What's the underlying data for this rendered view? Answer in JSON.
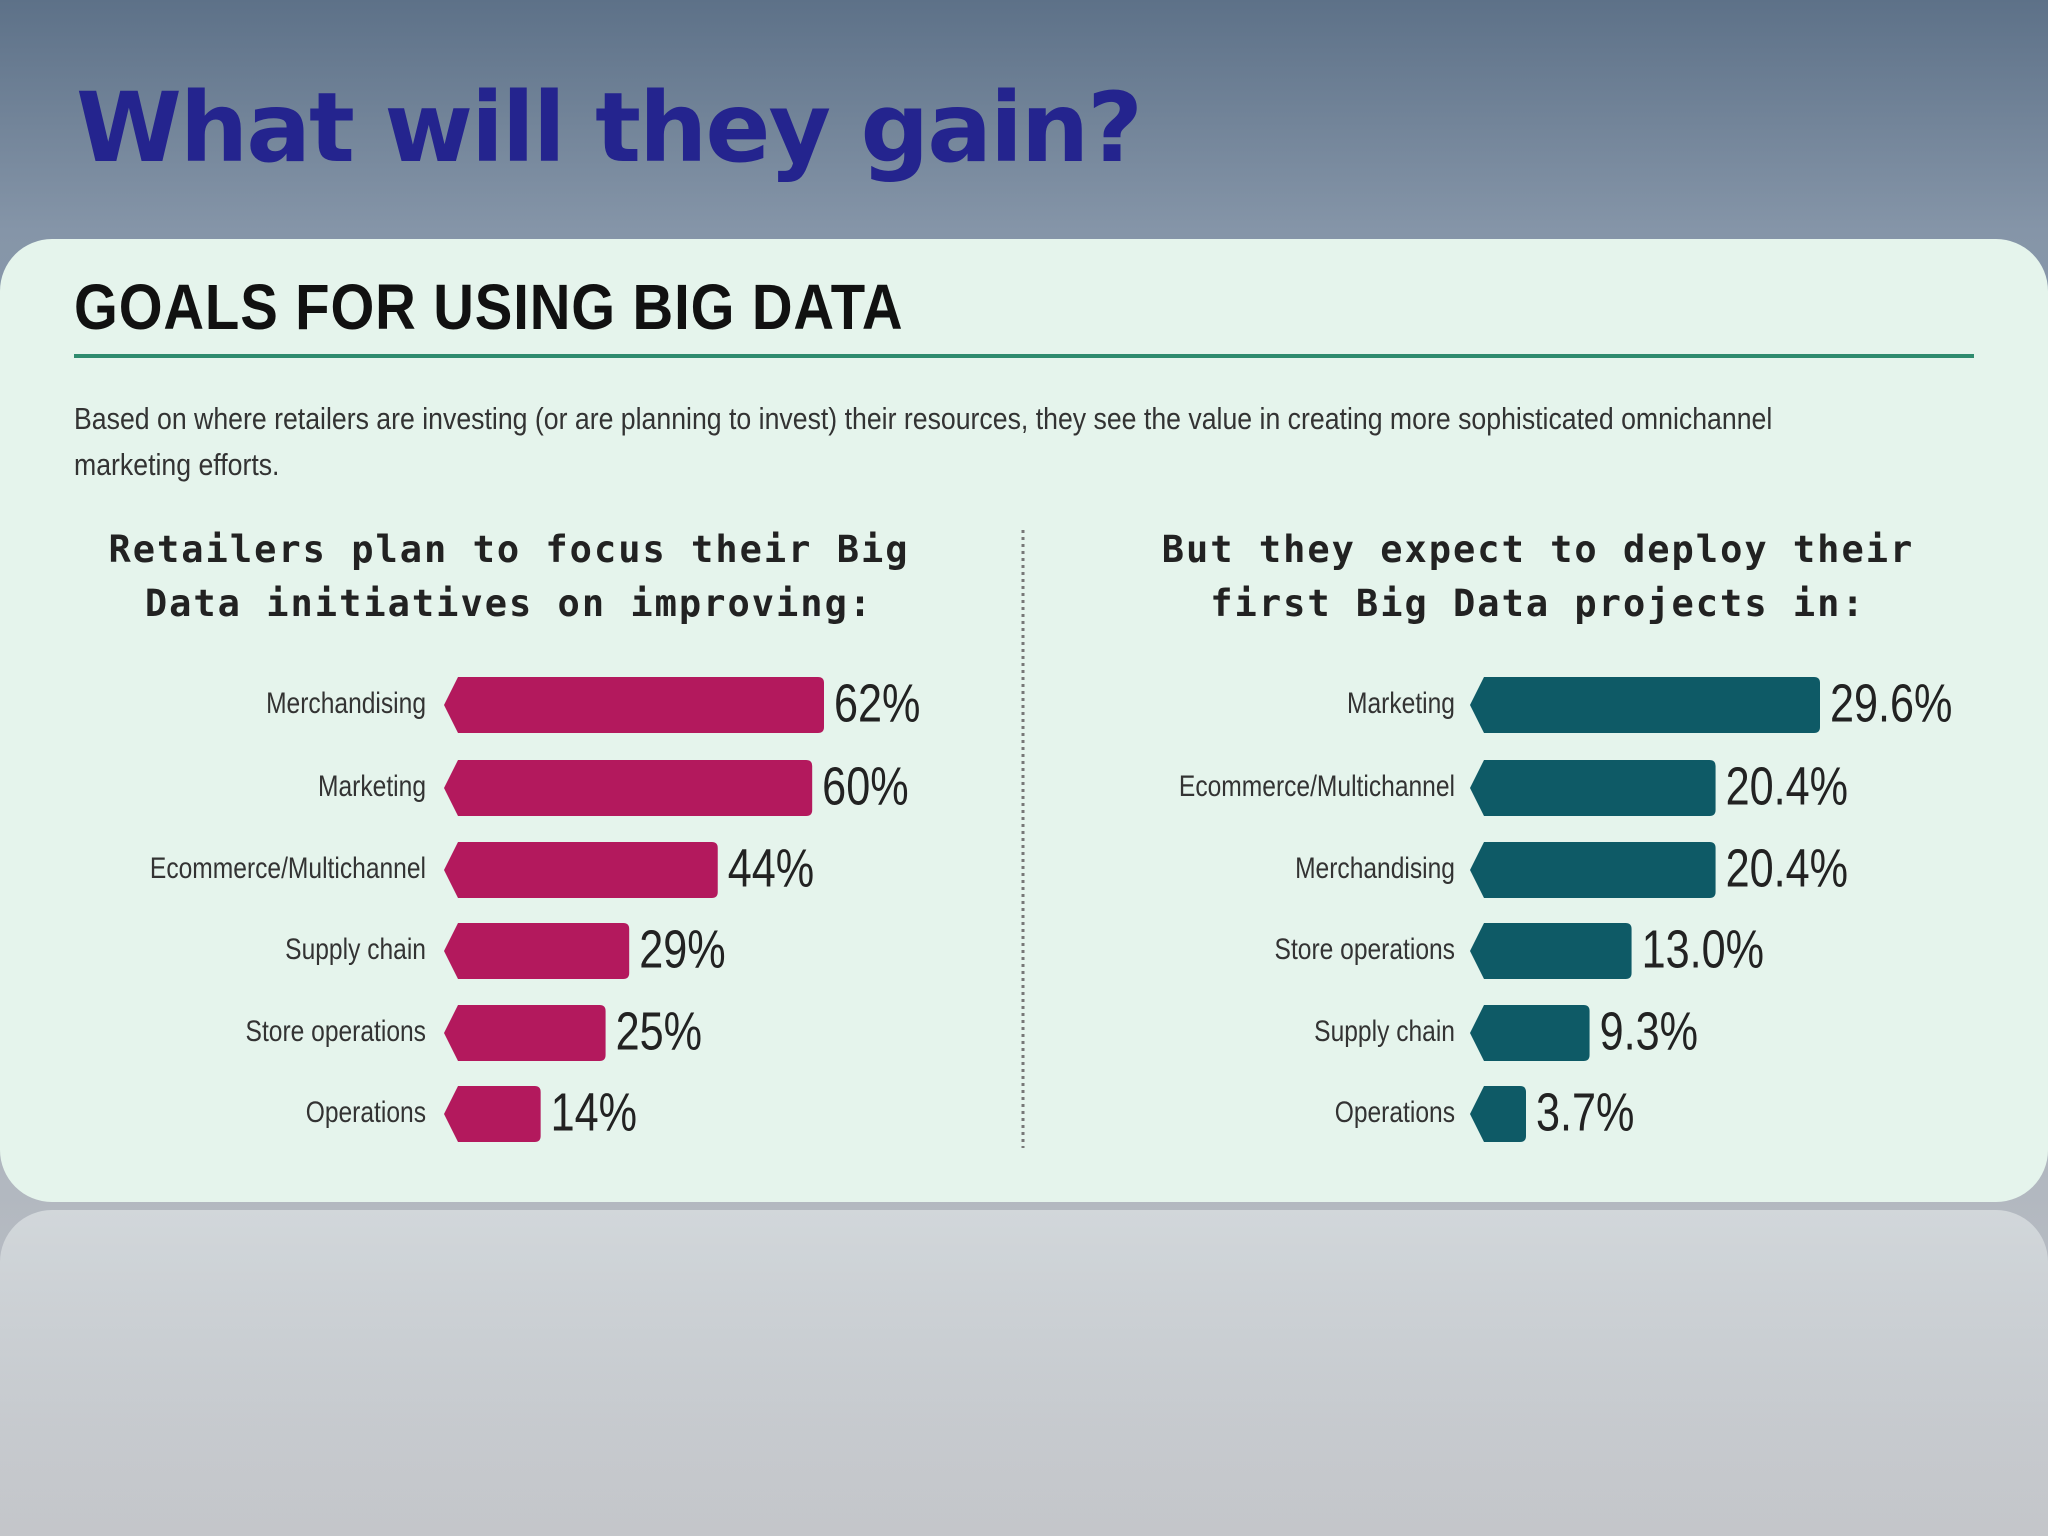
{
  "slide_title": "What will they gain?",
  "heading": "GOALS FOR USING BIG DATA",
  "description": "Based on where retailers are investing (or are planning to invest) their resources, they see the value in creating more sophisticated omnichannel marketing efforts.",
  "chart_data": [
    {
      "type": "bar",
      "orientation": "horizontal",
      "title": "Retailers plan to focus their Big Data initiatives on improving:",
      "categories": [
        "Merchandising",
        "Marketing",
        "Ecommerce/Multichannel",
        "Supply chain",
        "Store operations",
        "Operations"
      ],
      "values": [
        62,
        60,
        44,
        29,
        25,
        14
      ],
      "value_labels": [
        "62%",
        "60%",
        "44%",
        "29%",
        "25%",
        "14%"
      ],
      "color": "#b3195d"
    },
    {
      "type": "bar",
      "orientation": "horizontal",
      "title": "But they expect to deploy their first Big Data projects in:",
      "categories": [
        "Marketing",
        "Ecommerce/Multichannel",
        "Merchandising",
        "Store operations",
        "Supply chain",
        "Operations"
      ],
      "values": [
        29.6,
        20.4,
        20.4,
        13.0,
        9.3,
        3.7
      ],
      "value_labels": [
        "29.6%",
        "20.4%",
        "20.4%",
        "13.0%",
        "9.3%",
        "3.7%"
      ],
      "color": "#0e5a66"
    }
  ]
}
